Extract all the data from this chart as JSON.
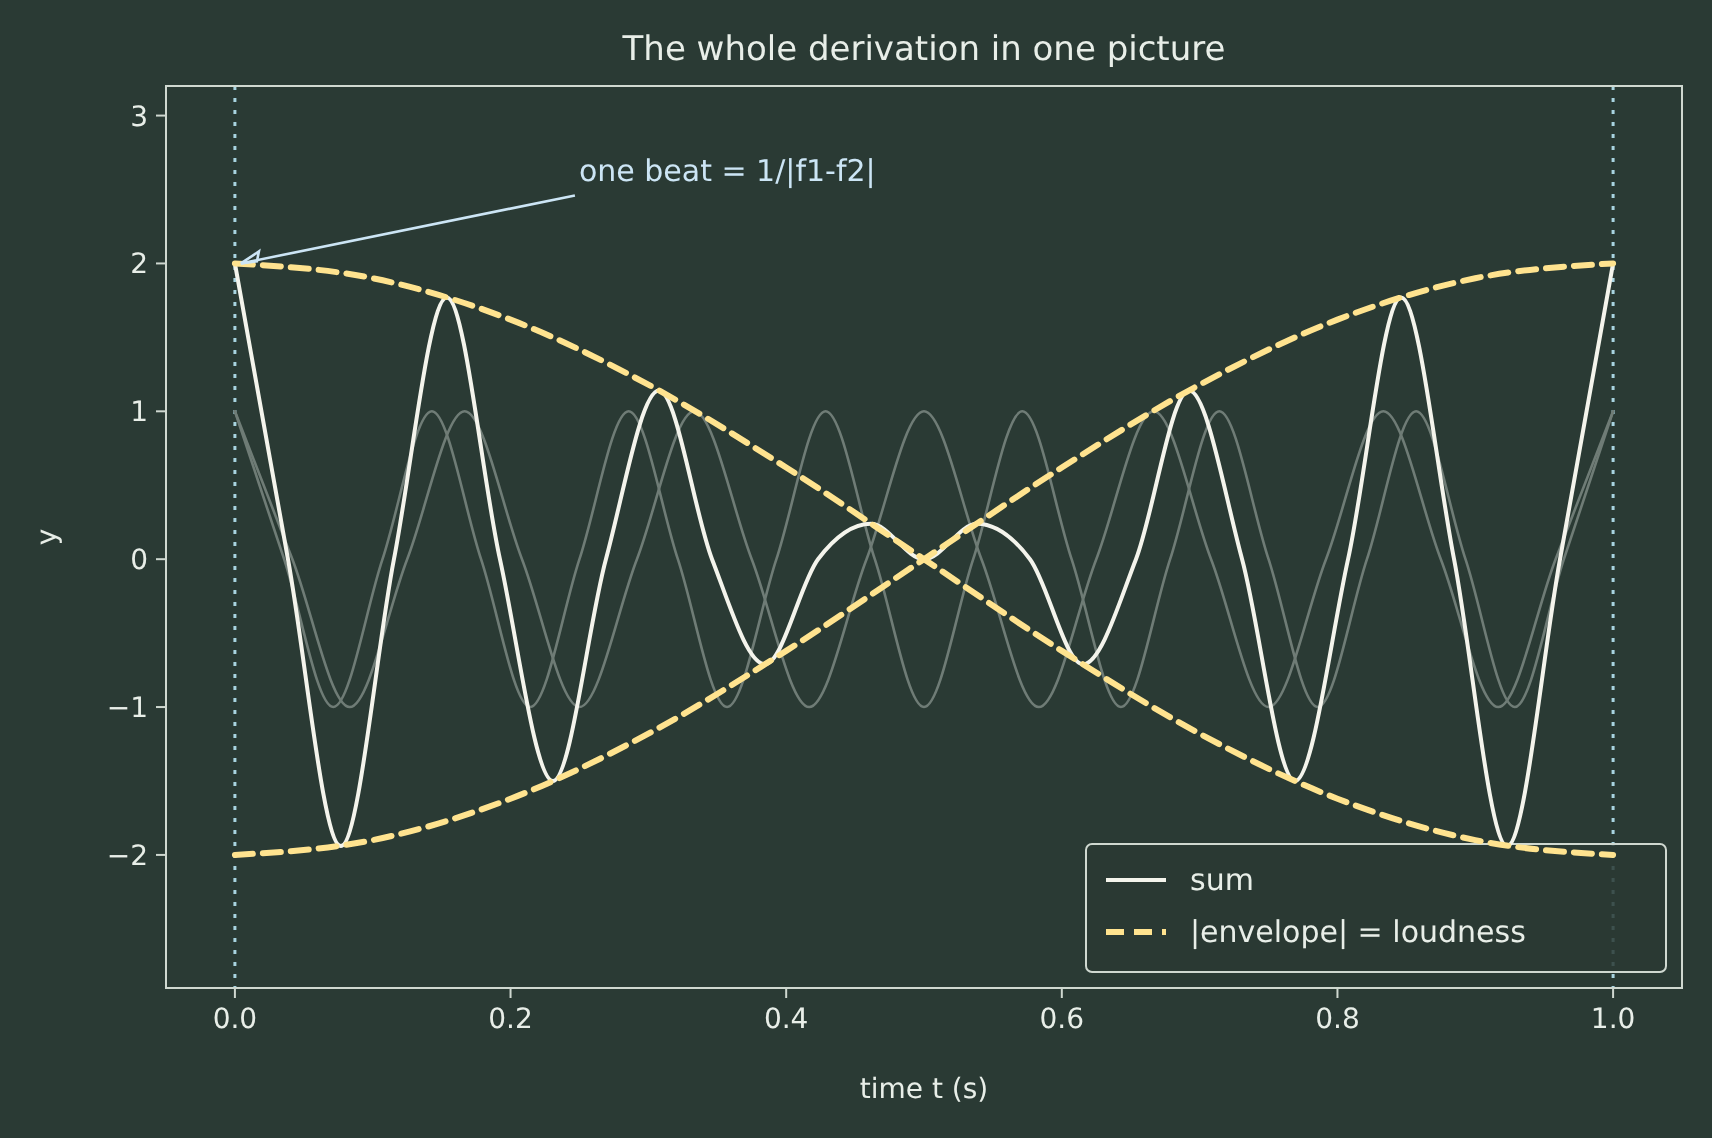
{
  "chart_data": {
    "type": "line",
    "title": "The whole derivation in one picture",
    "xlabel": "time t (s)",
    "ylabel": "y",
    "xlim": [
      -0.05,
      1.05
    ],
    "ylim": [
      -2.9,
      3.2
    ],
    "xticks": [
      {
        "value": 0,
        "label": "0.0"
      },
      {
        "value": 0.2,
        "label": "0.2"
      },
      {
        "value": 0.4,
        "label": "0.4"
      },
      {
        "value": 0.6,
        "label": "0.6"
      },
      {
        "value": 0.8,
        "label": "0.8"
      },
      {
        "value": 1,
        "label": "1.0"
      }
    ],
    "yticks": [
      {
        "value": -2,
        "label": "−2"
      },
      {
        "value": -1,
        "label": "−1"
      },
      0,
      1,
      2,
      3
    ],
    "grid": false,
    "legend": "bottom right",
    "marker": "none",
    "series": [
      {
        "color": "#6f7c76",
        "line_style": "solid",
        "x": [
          0,
          0.0357,
          0.0714,
          0.1071,
          0.1429,
          0.1786,
          0.2143,
          0.25,
          0.2857,
          0.3214,
          0.3571,
          0.3929,
          0.4286,
          0.4643,
          0.5,
          0.5357,
          0.5714,
          0.6071,
          0.6429,
          0.6786,
          0.7143,
          0.75,
          0.7857,
          0.8214,
          0.8571,
          0.8929,
          0.9286,
          0.9643,
          1
        ],
        "values": [
          1,
          0,
          -1,
          0,
          1,
          0,
          -1,
          0,
          1,
          0,
          -1,
          0,
          1,
          0,
          -1,
          0,
          1,
          0,
          -1,
          0,
          1,
          0,
          -1,
          0,
          1,
          0,
          -1,
          0,
          1
        ]
      },
      {
        "color": "#6f7c76",
        "line_style": "solid",
        "x": [
          0,
          0.0417,
          0.0833,
          0.125,
          0.1667,
          0.2083,
          0.25,
          0.2917,
          0.3333,
          0.375,
          0.4167,
          0.4583,
          0.5,
          0.5417,
          0.5833,
          0.625,
          0.6667,
          0.7083,
          0.75,
          0.7917,
          0.8333,
          0.875,
          0.9167,
          0.9583,
          1
        ],
        "values": [
          1,
          0,
          -1,
          0,
          1,
          0,
          -1,
          0,
          1,
          0,
          -1,
          0,
          1,
          0,
          -1,
          0,
          1,
          0,
          -1,
          0,
          1,
          0,
          -1,
          0,
          1
        ]
      },
      {
        "name": "sum",
        "color": "#f4f4ec",
        "line_style": "solid",
        "x": [
          0,
          0.0385,
          0.0769,
          0.1154,
          0.1538,
          0.1923,
          0.2308,
          0.2692,
          0.3077,
          0.3462,
          0.3846,
          0.4231,
          0.4615,
          0.5,
          0.5385,
          0.5769,
          0.6154,
          0.6538,
          0.6923,
          0.7308,
          0.7692,
          0.8077,
          0.8462,
          0.8846,
          0.9231,
          0.9615,
          1
        ],
        "values": [
          2,
          0,
          -1.94,
          0,
          1.77,
          0,
          -1.5,
          0,
          1.14,
          0,
          -0.71,
          0,
          0.24,
          0,
          0.24,
          0,
          -0.71,
          0,
          1.14,
          0,
          -1.5,
          0,
          1.77,
          0,
          -1.94,
          0,
          2
        ]
      },
      {
        "name": "|envelope| = loudness",
        "color": "#ffe38f",
        "line_style": "dashed",
        "x": [
          0,
          0.1,
          0.2,
          0.3,
          0.4,
          0.5,
          0.6,
          0.7,
          0.8,
          0.9,
          1
        ],
        "values": [
          2,
          1.9,
          1.62,
          1.18,
          0.62,
          0,
          -0.62,
          -1.18,
          -1.62,
          -1.9,
          -2
        ]
      },
      {
        "color": "#ffe38f",
        "line_style": "dashed",
        "x": [
          0,
          0.1,
          0.2,
          0.3,
          0.4,
          0.5,
          0.6,
          0.7,
          0.8,
          0.9,
          1
        ],
        "values": [
          -2,
          -1.9,
          -1.62,
          -1.18,
          -0.62,
          0,
          0.62,
          1.18,
          1.62,
          1.9,
          2
        ]
      }
    ],
    "ref_lines": [
      {
        "axis": "x",
        "value": 0,
        "color": "#a8d4e0",
        "line_style": "dotted"
      },
      {
        "axis": "x",
        "value": 1,
        "color": "#a8d4e0",
        "line_style": "dotted"
      }
    ],
    "annotations": [
      {
        "text": "one beat = 1/|f1-f2|",
        "x": 0,
        "y": 2
      }
    ]
  }
}
